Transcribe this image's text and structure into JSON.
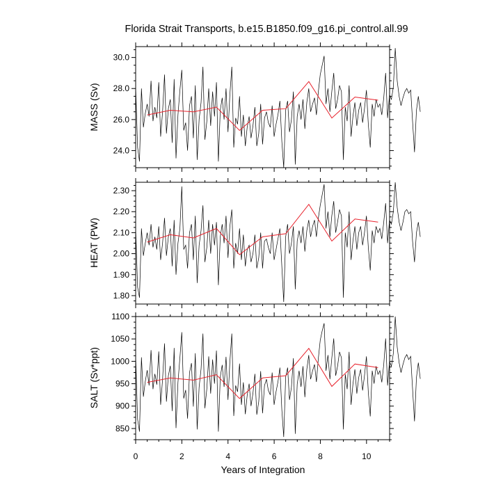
{
  "chart_data": {
    "type": "line",
    "title": "Florida Strait Transports, b.e15.B1850.f09_g16.pi_control.all.99",
    "xlabel": "Years of Integration",
    "xlim": [
      0,
      11
    ],
    "xticks": [
      0,
      2,
      4,
      6,
      8,
      10
    ],
    "monthly_step": 0.0833,
    "annual_x": [
      0.5,
      1.5,
      2.5,
      3.5,
      4.5,
      5.5,
      6.5,
      7.5,
      8.5,
      9.5,
      10.5
    ],
    "panels": [
      {
        "ylabel": "MASS (Sv)",
        "ylim": [
          22.9,
          30.7
        ],
        "yticks": [
          24.0,
          26.0,
          28.0,
          30.0
        ],
        "ytick_labels": [
          "24.0",
          "26.0",
          "28.0",
          "30.0"
        ],
        "series": [
          {
            "name": "monthly",
            "color": "#000000",
            "values": [
              28.1,
              24.2,
              23.3,
              28.0,
              25.5,
              26.4,
              27.0,
              26.2,
              28.5,
              25.9,
              26.8,
              26.1,
              28.4,
              24.9,
              26.5,
              28.9,
              25.1,
              26.7,
              27.3,
              24.5,
              28.6,
              23.5,
              26.3,
              27.9,
              29.2,
              25.3,
              25.8,
              24.0,
              26.9,
              27.5,
              24.8,
              28.2,
              23.4,
              26.0,
              27.1,
              29.4,
              24.7,
              25.9,
              28.0,
              25.6,
              27.8,
              26.2,
              28.4,
              23.3,
              26.6,
              27.4,
              26.0,
              28.0,
              25.2,
              27.6,
              29.4,
              24.2,
              26.1,
              25.7,
              27.5,
              24.9,
              26.3,
              24.3,
              25.5,
              26.2,
              24.8,
              25.6,
              26.8,
              24.3,
              25.1,
              27.0,
              24.4,
              26.1,
              26.5,
              25.8,
              25.5,
              26.9,
              24.9,
              25.7,
              26.3,
              27.2,
              24.6,
              22.9,
              26.6,
              27.2,
              25.2,
              26.0,
              27.8,
              23.1,
              26.2,
              27.0,
              26.0,
              27.3,
              25.4,
              27.1,
              28.0,
              26.5,
              27.0,
              27.4,
              26.3,
              27.8,
              28.9,
              29.5,
              30.1,
              27.0,
              28.0,
              26.5,
              27.8,
              29.0,
              26.7,
              27.3,
              28.2,
              27.8,
              23.4,
              26.8,
              25.9,
              28.2,
              24.9,
              26.2,
              27.1,
              25.6,
              26.6,
              27.1,
              25.8,
              26.7,
              27.9,
              25.7,
              24.2,
              27.0,
              26.2,
              27.3,
              26.8,
              27.0,
              26.3,
              27.4,
              29.0,
              26.1,
              27.6,
              27.3,
              28.1,
              30.6,
              28.5,
              27.5,
              26.9,
              27.4,
              27.8,
              28.0,
              27.7,
              27.9,
              25.9,
              23.9,
              26.6,
              27.5,
              26.5
            ]
          },
          {
            "name": "annual",
            "color": "#e8202a",
            "values": [
              26.3,
              26.6,
              26.5,
              26.8,
              25.3,
              26.6,
              26.7,
              28.45,
              26.1,
              27.45,
              27.25
            ]
          }
        ]
      },
      {
        "ylabel": "HEAT (PW)",
        "ylim": [
          1.76,
          2.34
        ],
        "yticks": [
          1.8,
          1.9,
          2.0,
          2.1,
          2.2,
          2.3
        ],
        "ytick_labels": [
          "1.80",
          "1.90",
          "2.00",
          "2.10",
          "2.20",
          "2.30"
        ],
        "series": [
          {
            "name": "monthly",
            "color": "#000000",
            "values": [
              2.12,
              1.84,
              1.79,
              2.12,
              1.99,
              2.05,
              2.1,
              2.04,
              2.14,
              2.03,
              2.08,
              2.02,
              2.13,
              1.97,
              2.05,
              2.17,
              1.99,
              2.08,
              2.12,
              1.94,
              2.16,
              1.9,
              2.05,
              2.12,
              2.32,
              2.02,
              2.04,
              1.93,
              2.1,
              2.14,
              1.97,
              2.18,
              1.86,
              2.04,
              2.11,
              2.23,
              1.96,
              2.03,
              2.16,
              2.0,
              2.14,
              2.04,
              2.15,
              1.85,
              2.08,
              2.14,
              2.05,
              2.18,
              1.98,
              2.13,
              2.21,
              1.93,
              2.05,
              2.0,
              2.12,
              1.97,
              2.09,
              1.94,
              2.02,
              2.04,
              1.96,
              2.0,
              2.09,
              1.93,
              1.98,
              2.1,
              1.93,
              2.06,
              2.07,
              2.03,
              2.0,
              2.1,
              1.97,
              2.02,
              2.07,
              2.12,
              1.94,
              1.77,
              2.08,
              2.14,
              2.0,
              2.05,
              2.13,
              1.83,
              2.06,
              2.11,
              2.05,
              2.13,
              2.01,
              2.11,
              2.16,
              2.08,
              2.13,
              2.16,
              2.08,
              2.17,
              2.23,
              2.28,
              2.33,
              2.12,
              2.2,
              2.08,
              2.18,
              2.25,
              2.1,
              2.15,
              2.21,
              2.18,
              1.79,
              2.1,
              2.03,
              2.2,
              1.97,
              2.06,
              2.13,
              2.02,
              2.1,
              2.13,
              2.04,
              2.1,
              2.18,
              2.03,
              1.92,
              2.11,
              2.05,
              2.13,
              2.1,
              2.12,
              2.07,
              2.15,
              2.24,
              2.05,
              2.16,
              2.14,
              2.2,
              2.34,
              2.22,
              2.15,
              2.11,
              2.15,
              2.2,
              2.21,
              2.19,
              2.2,
              2.06,
              1.96,
              2.1,
              2.15,
              2.08
            ]
          },
          {
            "name": "annual",
            "color": "#e8202a",
            "values": [
              2.055,
              2.09,
              2.075,
              2.12,
              1.995,
              2.08,
              2.095,
              2.235,
              2.06,
              2.165,
              2.15
            ]
          }
        ]
      },
      {
        "ylabel": "SALT (Sv*ppt)",
        "ylim": [
          825,
          1100
        ],
        "yticks": [
          850,
          900,
          950,
          1000,
          1050,
          1100
        ],
        "ytick_labels": [
          "850",
          "900",
          "950",
          "1000",
          "1050",
          "1100"
        ],
        "series": [
          {
            "name": "monthly",
            "color": "#000000",
            "values": [
              1012,
              870,
              843,
              1009,
              921,
              955,
              980,
              946,
              1025,
              938,
              972,
              948,
              1022,
              903,
              960,
              1040,
              910,
              968,
              990,
              889,
              1030,
              851,
              953,
              1008,
              1065,
              917,
              936,
              872,
              975,
              996,
              899,
              1018,
              848,
              942,
              983,
              1062,
              895,
              939,
              1011,
              928,
              1004,
              950,
              1024,
              843,
              965,
              992,
              943,
              1010,
              914,
              999,
              1062,
              878,
              946,
              932,
              995,
              903,
              953,
              882,
              924,
              950,
              900,
              929,
              972,
              881,
              910,
              978,
              884,
              946,
              960,
              935,
              925,
              975,
              903,
              932,
              954,
              986,
              892,
              831,
              965,
              986,
              914,
              942,
              1007,
              838,
              949,
              979,
              943,
              989,
              920,
              982,
              1014,
              960,
              979,
              993,
              954,
              1007,
              1047,
              1068,
              1085,
              979,
              1014,
              960,
              1007,
              1051,
              968,
              989,
              1021,
              1008,
              848,
              971,
              938,
              1021,
              903,
              949,
              982,
              928,
              964,
              982,
              935,
              968,
              1011,
              931,
              877,
              979,
              950,
              989,
              971,
              979,
              953,
              993,
              1051,
              946,
              1000,
              989,
              1018,
              1100,
              1032,
              997,
              975,
              993,
              1008,
              1015,
              1004,
              1011,
              939,
              866,
              964,
              997,
              961
            ]
          },
          {
            "name": "annual",
            "color": "#e8202a",
            "values": [
              953,
              963,
              958,
              970,
              917,
              963,
              968,
              1029,
              944,
              994,
              986
            ]
          }
        ]
      }
    ]
  }
}
